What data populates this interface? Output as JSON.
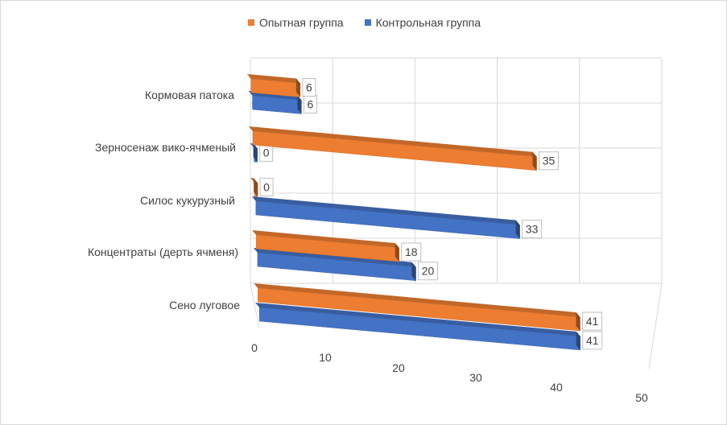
{
  "chart_data": {
    "type": "bar",
    "orientation": "horizontal",
    "style": "3d",
    "categories": [
      "Кормовая патока",
      "Зерносенаж вико-ячменый",
      "Силос кукурузный",
      "Концентраты (дерть ячменя)",
      "Сено луговое"
    ],
    "series": [
      {
        "name": "Опытная группа",
        "color": "#ED7D31",
        "values": [
          6,
          35,
          0,
          18,
          41
        ]
      },
      {
        "name": "Контрольная группа",
        "color": "#4472C4",
        "values": [
          6,
          0,
          33,
          20,
          41
        ]
      }
    ],
    "xaxis": {
      "min": 0,
      "max": 50,
      "ticks": [
        "0",
        "10",
        "20",
        "30",
        "40",
        "50"
      ]
    },
    "legend_position": "top",
    "grid": true
  }
}
